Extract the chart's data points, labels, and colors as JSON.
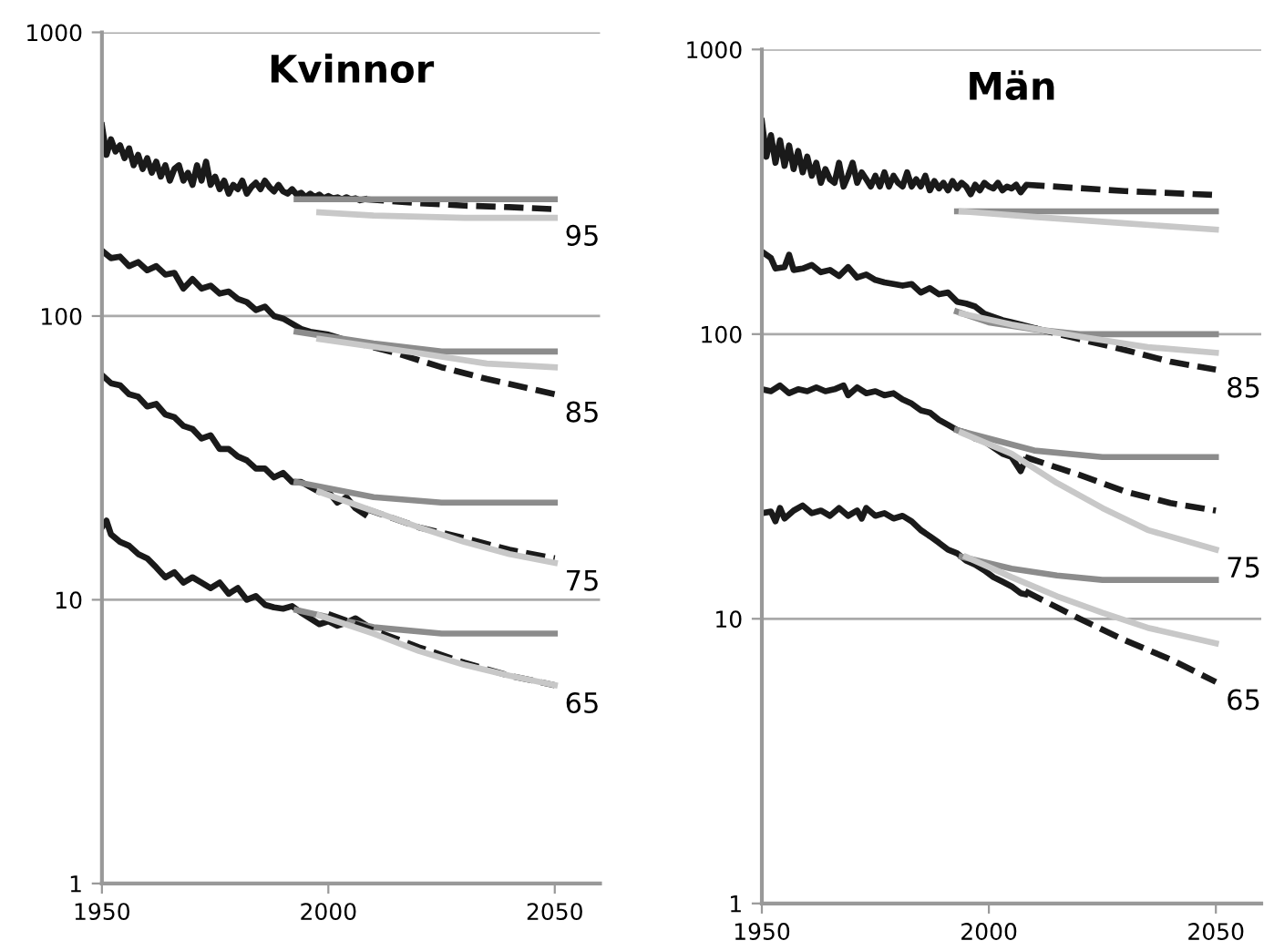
{
  "chart_data": [
    {
      "type": "line",
      "title": "Kvinnor",
      "log": "y",
      "grid": "y",
      "xlim": [
        1950,
        2060
      ],
      "xticks": [
        1950,
        2000,
        2050
      ],
      "ylim": [
        1,
        1000
      ],
      "yticks": [
        1,
        10,
        100,
        1000
      ],
      "series": [
        {
          "color": "#1a1a1a",
          "line_style": "solid",
          "x": [
            1950,
            1951,
            1952,
            1953,
            1954,
            1955,
            1956,
            1957,
            1958,
            1959,
            1960,
            1961,
            1962,
            1963,
            1964,
            1965,
            1966,
            1967,
            1968,
            1969,
            1970,
            1971,
            1972,
            1973,
            1974,
            1975,
            1976,
            1977,
            1978,
            1979,
            1980,
            1981,
            1982,
            1983,
            1984,
            1985,
            1986,
            1987,
            1988,
            1989,
            1990,
            1991,
            1992,
            1993,
            1994,
            1995,
            1996,
            1997,
            1998,
            1999,
            2000,
            2001,
            2002,
            2003,
            2004,
            2005,
            2006,
            2007,
            2008
          ],
          "values": [
            470,
            370,
            420,
            380,
            400,
            360,
            390,
            340,
            370,
            330,
            360,
            320,
            350,
            310,
            340,
            300,
            330,
            340,
            300,
            320,
            290,
            340,
            300,
            350,
            290,
            310,
            280,
            300,
            270,
            290,
            280,
            300,
            270,
            285,
            295,
            280,
            300,
            285,
            275,
            290,
            275,
            270,
            280,
            268,
            272,
            262,
            270,
            262,
            268,
            260,
            265,
            260,
            262,
            258,
            262,
            258,
            260,
            256,
            258
          ]
        },
        {
          "color": "#1a1a1a",
          "line_style": "dashed",
          "x": [
            2008,
            2020,
            2030,
            2040,
            2050
          ],
          "values": [
            258,
            250,
            245,
            242,
            238
          ]
        },
        {
          "color": "#8c8c8c",
          "line_style": "solid",
          "x": [
            1993,
            2050
          ],
          "values": [
            258,
            258
          ]
        },
        {
          "color": "#c8c8c8",
          "line_style": "solid",
          "x": [
            1998,
            2010,
            2020,
            2030,
            2040,
            2050
          ],
          "values": [
            232,
            226,
            224,
            222,
            222,
            222
          ]
        },
        {
          "color": "#1a1a1a",
          "line_style": "solid",
          "x": [
            1950,
            1952,
            1954,
            1956,
            1958,
            1960,
            1962,
            1964,
            1966,
            1968,
            1970,
            1972,
            1974,
            1976,
            1978,
            1980,
            1982,
            1984,
            1986,
            1988,
            1990,
            1992,
            1994,
            1996,
            1998,
            2000,
            2002,
            2004
          ],
          "values": [
            170,
            160,
            162,
            150,
            155,
            145,
            150,
            140,
            142,
            125,
            135,
            125,
            128,
            120,
            122,
            115,
            112,
            105,
            108,
            100,
            98,
            94,
            90,
            88,
            87,
            86,
            84,
            82
          ]
        },
        {
          "color": "#1a1a1a",
          "line_style": "dashed",
          "x": [
            2004,
            2015,
            2025,
            2035,
            2050
          ],
          "values": [
            82,
            74,
            66,
            60,
            53
          ]
        },
        {
          "color": "#8c8c8c",
          "line_style": "solid",
          "x": [
            1993,
            2010,
            2025,
            2050
          ],
          "values": [
            88,
            80,
            75,
            75
          ]
        },
        {
          "color": "#c8c8c8",
          "line_style": "solid",
          "x": [
            1998,
            2020,
            2035,
            2050
          ],
          "values": [
            83,
            74,
            68,
            66
          ]
        },
        {
          "color": "#1a1a1a",
          "line_style": "solid",
          "x": [
            1950,
            1952,
            1954,
            1956,
            1958,
            1960,
            1962,
            1964,
            1966,
            1968,
            1970,
            1972,
            1974,
            1976,
            1978,
            1980,
            1982,
            1984,
            1986,
            1988,
            1990,
            1992,
            1994,
            1996,
            1998,
            2000,
            2002,
            2004,
            2006,
            2008
          ],
          "values": [
            62,
            58,
            57,
            53,
            52,
            48,
            49,
            45,
            44,
            41,
            40,
            37,
            38,
            34,
            34,
            32,
            31,
            29,
            29,
            27,
            28,
            26,
            26,
            25,
            24,
            24,
            22,
            23,
            21,
            20
          ]
        },
        {
          "color": "#8c8c8c",
          "line_style": "solid",
          "x": [
            1993,
            2010,
            2025,
            2050
          ],
          "values": [
            26,
            23,
            22,
            22
          ]
        },
        {
          "color": "#1a1a1a",
          "line_style": "dashed",
          "x": [
            2008,
            2020,
            2030,
            2040,
            2050
          ],
          "values": [
            21,
            18,
            16.5,
            15,
            14
          ]
        },
        {
          "color": "#c8c8c8",
          "line_style": "solid",
          "x": [
            1998,
            2020,
            2030,
            2040,
            2050
          ],
          "values": [
            24,
            18,
            16,
            14.5,
            13.5
          ]
        },
        {
          "color": "#1a1a1a",
          "line_style": "solid",
          "x": [
            1950,
            1951,
            1952,
            1954,
            1956,
            1958,
            1960,
            1962,
            1964,
            1966,
            1968,
            1970,
            1972,
            1974,
            1976,
            1978,
            1980,
            1982,
            1984,
            1986,
            1988,
            1990,
            1992,
            1994,
            1996,
            1998,
            2000,
            2002,
            2004,
            2006,
            2008
          ],
          "values": [
            18,
            19,
            17,
            16,
            15.5,
            14.5,
            14,
            13,
            12,
            12.5,
            11.5,
            12,
            11.5,
            11,
            11.5,
            10.5,
            11,
            10,
            10.3,
            9.6,
            9.4,
            9.3,
            9.5,
            9.0,
            8.6,
            8.2,
            8.4,
            8.1,
            8.3,
            8.6,
            8.2
          ]
        },
        {
          "color": "#8c8c8c",
          "line_style": "solid",
          "x": [
            1993,
            2010,
            2025,
            2050
          ],
          "values": [
            9.2,
            8.0,
            7.6,
            7.6
          ]
        },
        {
          "color": "#1a1a1a",
          "line_style": "dashed",
          "x": [
            2000,
            2010,
            2020,
            2030,
            2040,
            2050
          ],
          "values": [
            8.9,
            7.8,
            6.8,
            6.0,
            5.4,
            5.0
          ]
        },
        {
          "color": "#c8c8c8",
          "line_style": "solid",
          "x": [
            1998,
            2010,
            2020,
            2030,
            2040,
            2050
          ],
          "values": [
            8.8,
            7.6,
            6.6,
            5.9,
            5.4,
            5.0
          ]
        }
      ],
      "annotations": [
        "95",
        "85",
        "75",
        "65"
      ]
    },
    {
      "type": "line",
      "title": "Män",
      "log": "y",
      "grid": "y",
      "xlim": [
        1950,
        2060
      ],
      "xticks": [
        1950,
        2000,
        2050
      ],
      "ylim": [
        1,
        1000
      ],
      "yticks": [
        1,
        10,
        100,
        1000
      ],
      "series": [
        {
          "color": "#1a1a1a",
          "line_style": "solid",
          "x": [
            1950,
            1951,
            1952,
            1953,
            1954,
            1955,
            1956,
            1957,
            1958,
            1959,
            1960,
            1961,
            1962,
            1963,
            1964,
            1965,
            1966,
            1967,
            1968,
            1969,
            1970,
            1971,
            1972,
            1973,
            1974,
            1975,
            1976,
            1977,
            1978,
            1979,
            1980,
            1981,
            1982,
            1983,
            1984,
            1985,
            1986,
            1987,
            1988,
            1989,
            1990,
            1991,
            1992,
            1993,
            1994,
            1995,
            1996,
            1997,
            1998,
            1999,
            2000,
            2001,
            2002,
            2003,
            2004,
            2005,
            2006,
            2007,
            2008
          ],
          "values": [
            560,
            420,
            500,
            400,
            480,
            390,
            460,
            380,
            440,
            370,
            420,
            360,
            400,
            340,
            380,
            350,
            340,
            400,
            330,
            360,
            400,
            340,
            370,
            350,
            330,
            360,
            330,
            370,
            330,
            360,
            340,
            330,
            370,
            330,
            350,
            330,
            360,
            320,
            345,
            325,
            340,
            320,
            345,
            325,
            340,
            330,
            310,
            335,
            320,
            340,
            330,
            325,
            340,
            320,
            330,
            325,
            335,
            315,
            330
          ]
        },
        {
          "color": "#1a1a1a",
          "line_style": "dashed",
          "x": [
            2008,
            2030,
            2050
          ],
          "values": [
            335,
            318,
            308
          ]
        },
        {
          "color": "#8c8c8c",
          "line_style": "solid",
          "x": [
            1993,
            2050
          ],
          "values": [
            270,
            270
          ]
        },
        {
          "color": "#c8c8c8",
          "line_style": "solid",
          "x": [
            1994,
            2010,
            2030,
            2050
          ],
          "values": [
            270,
            258,
            245,
            233
          ]
        },
        {
          "color": "#1a1a1a",
          "line_style": "solid",
          "x": [
            1950,
            1952,
            1953,
            1955,
            1956,
            1957,
            1959,
            1961,
            1963,
            1965,
            1967,
            1969,
            1971,
            1973,
            1975,
            1977,
            1979,
            1981,
            1983,
            1985,
            1987,
            1989,
            1991,
            1993,
            1995,
            1997,
            1999,
            2001,
            2003,
            2005,
            2007,
            2010
          ],
          "values": [
            195,
            185,
            170,
            172,
            190,
            168,
            170,
            175,
            165,
            168,
            160,
            172,
            158,
            162,
            155,
            152,
            150,
            148,
            150,
            140,
            145,
            138,
            140,
            130,
            128,
            125,
            118,
            115,
            112,
            110,
            108,
            105
          ]
        },
        {
          "color": "#1a1a1a",
          "line_style": "dashed",
          "x": [
            2010,
            2020,
            2030,
            2040,
            2050
          ],
          "values": [
            105,
            96,
            88,
            80,
            75
          ]
        },
        {
          "color": "#8c8c8c",
          "line_style": "solid",
          "x": [
            1993,
            2000,
            2010,
            2020,
            2050
          ],
          "values": [
            120,
            110,
            104,
            100,
            100
          ]
        },
        {
          "color": "#c8c8c8",
          "line_style": "solid",
          "x": [
            1994,
            2005,
            2020,
            2035,
            2050
          ],
          "values": [
            118,
            108,
            98,
            90,
            86
          ]
        },
        {
          "color": "#1a1a1a",
          "line_style": "solid",
          "x": [
            1950,
            1952,
            1954,
            1956,
            1958,
            1960,
            1962,
            1964,
            1966,
            1968,
            1969,
            1971,
            1973,
            1975,
            1977,
            1979,
            1981,
            1983,
            1985,
            1987,
            1989,
            1991,
            1993,
            1995,
            1997,
            1999,
            2001,
            2003,
            2005,
            2007,
            2008
          ],
          "values": [
            64,
            63,
            66,
            62,
            64,
            63,
            65,
            63,
            64,
            66,
            61,
            65,
            62,
            63,
            61,
            62,
            59,
            57,
            54,
            53,
            50,
            48,
            46,
            45,
            43,
            42,
            40,
            38,
            37,
            33,
            36
          ]
        },
        {
          "color": "#8c8c8c",
          "line_style": "solid",
          "x": [
            1993,
            2010,
            2025,
            2050
          ],
          "values": [
            46,
            39,
            37,
            37
          ]
        },
        {
          "color": "#1a1a1a",
          "line_style": "dashed",
          "x": [
            2008,
            2020,
            2030,
            2040,
            2050
          ],
          "values": [
            37,
            32,
            28,
            25.5,
            24
          ]
        },
        {
          "color": "#c8c8c8",
          "line_style": "solid",
          "x": [
            1994,
            2005,
            2015,
            2025,
            2035,
            2050
          ],
          "values": [
            45,
            38,
            30,
            24.5,
            20.5,
            17.5
          ]
        },
        {
          "color": "#1a1a1a",
          "line_style": "solid",
          "x": [
            1950,
            1952,
            1953,
            1954,
            1955,
            1957,
            1959,
            1961,
            1963,
            1965,
            1967,
            1969,
            1971,
            1972,
            1973,
            1975,
            1977,
            1979,
            1981,
            1983,
            1985,
            1987,
            1989,
            1991,
            1993,
            1995,
            1997,
            1999,
            2001,
            2003,
            2005,
            2007,
            2008
          ],
          "values": [
            23.5,
            23.8,
            22,
            24.5,
            22.5,
            24,
            25,
            23.5,
            24,
            23,
            24.5,
            23,
            24,
            22.5,
            24.5,
            23,
            23.5,
            22.5,
            23,
            22,
            20.5,
            19.5,
            18.5,
            17.5,
            17,
            16,
            15.5,
            14.8,
            14,
            13.5,
            13,
            12.3,
            12.2
          ]
        },
        {
          "color": "#1a1a1a",
          "line_style": "dashed",
          "x": [
            2008,
            2020,
            2030,
            2040,
            2050
          ],
          "values": [
            12.5,
            10.0,
            8.4,
            7.2,
            6.0
          ]
        },
        {
          "color": "#8c8c8c",
          "line_style": "solid",
          "x": [
            1994,
            2005,
            2015,
            2025,
            2050
          ],
          "values": [
            16.5,
            15,
            14.2,
            13.7,
            13.7
          ]
        },
        {
          "color": "#c8c8c8",
          "line_style": "solid",
          "x": [
            1995,
            2005,
            2015,
            2025,
            2035,
            2050
          ],
          "values": [
            16.5,
            14,
            12,
            10.5,
            9.3,
            8.2
          ]
        }
      ],
      "annotations": [
        "85",
        "75",
        "65"
      ]
    }
  ]
}
